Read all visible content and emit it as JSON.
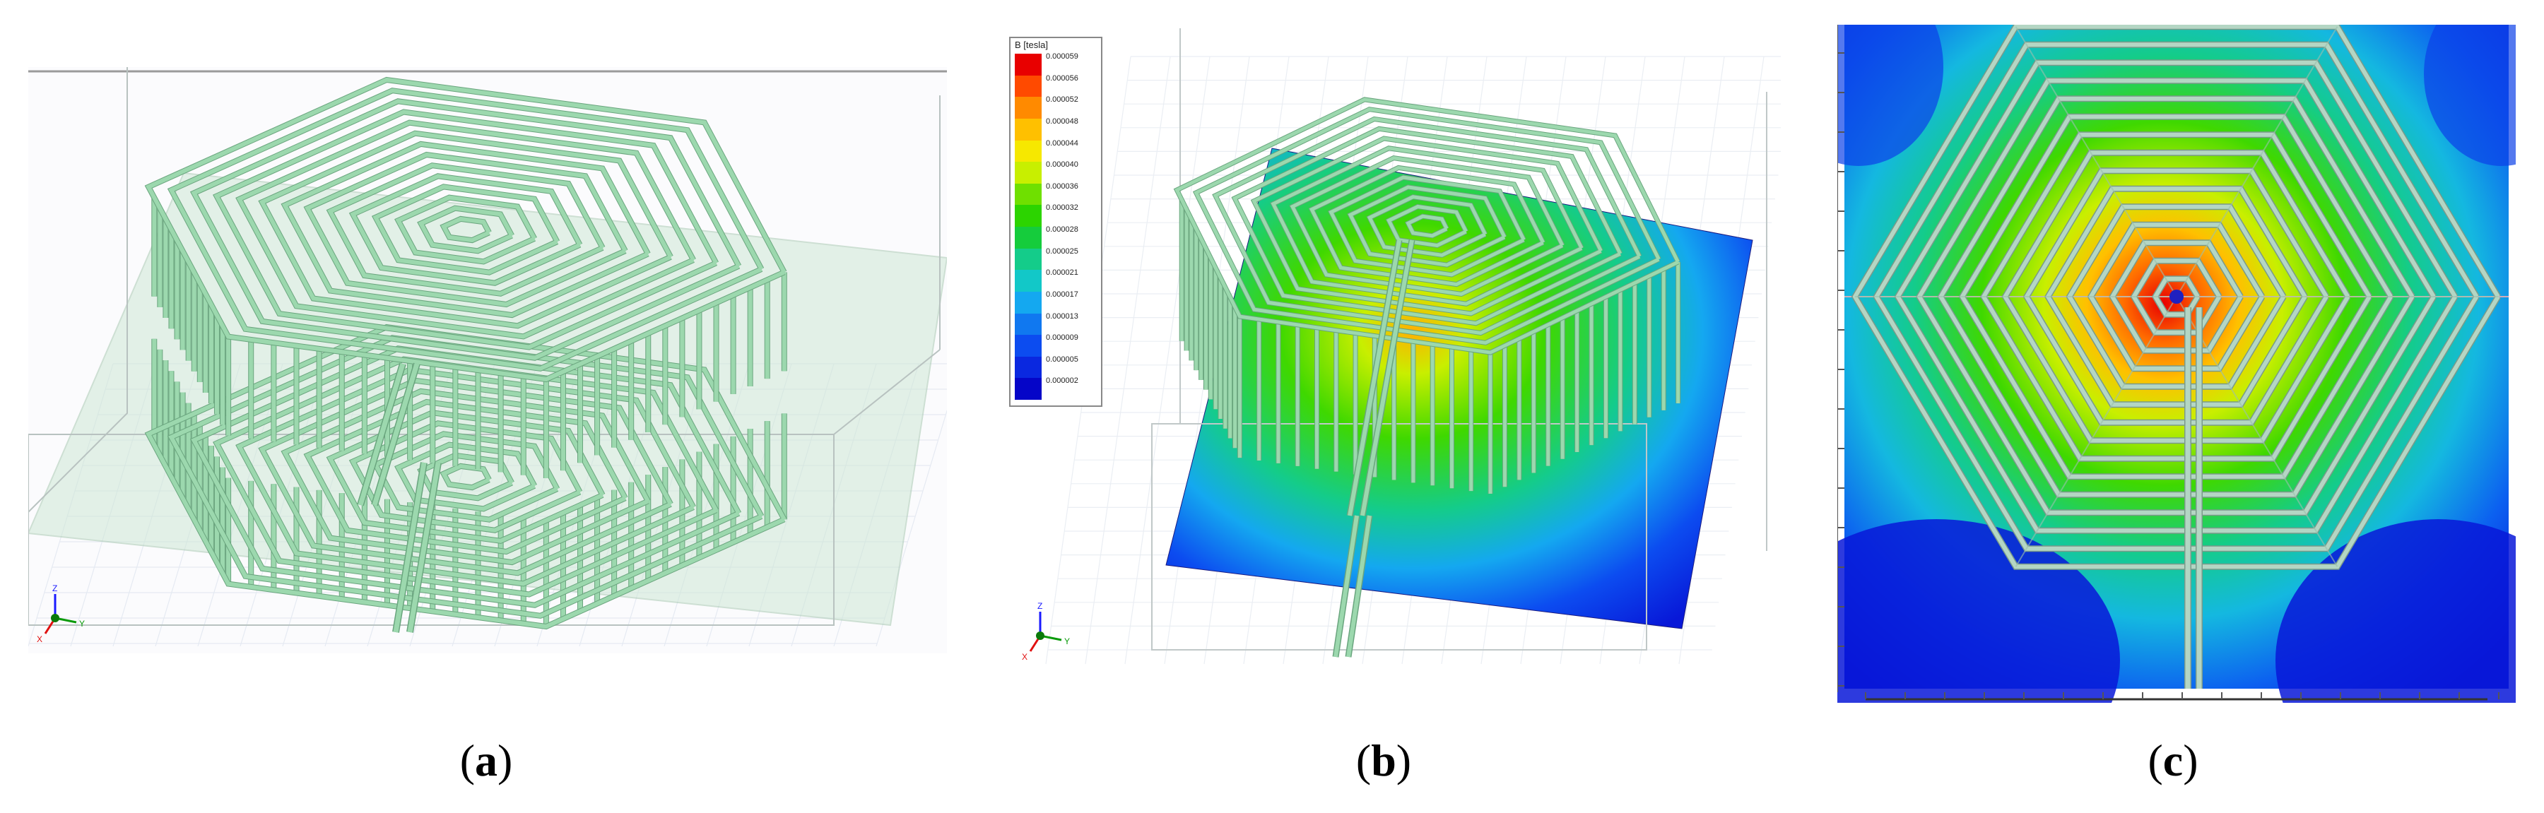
{
  "captions": [
    {
      "open": "(",
      "letter": "a",
      "close": ")"
    },
    {
      "open": "(",
      "letter": "b",
      "close": ")"
    },
    {
      "open": "(",
      "letter": "c",
      "close": ")"
    }
  ],
  "legend": {
    "title": "B [tesla]",
    "ticks": [
      "0.000059",
      "0.000056",
      "0.000052",
      "0.000048",
      "0.000044",
      "0.000040",
      "0.000036",
      "0.000032",
      "0.000028",
      "0.000025",
      "0.000021",
      "0.000017",
      "0.000013",
      "0.000009",
      "0.000005",
      "0.000002"
    ],
    "colors": [
      "#e80000",
      "#ff4a00",
      "#ff8a00",
      "#ffc000",
      "#f6e800",
      "#c8ef00",
      "#6fe000",
      "#2cd400",
      "#15cc3c",
      "#14cc8a",
      "#12c8c8",
      "#14a8f0",
      "#1078f0",
      "#0c4cf0",
      "#0a28e0",
      "#0505c8"
    ]
  },
  "axis_triads": {
    "z": "Z",
    "y": "Y",
    "x": "X"
  },
  "colors": {
    "coil": "#9cd8ae",
    "coil_edge": "#6aa57e",
    "field_low": "#0a1ee6",
    "field_high": "#e80000"
  }
}
